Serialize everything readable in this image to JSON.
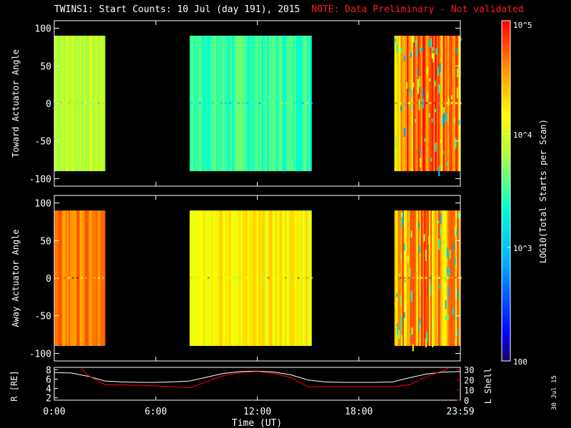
{
  "header": {
    "title": "TWINS1: Start Counts: 10 Jul (day 191), 2015",
    "note": "NOTE: Data Preliminary - Not validated"
  },
  "datestamp": "30 Jul 15",
  "colors": {
    "note": "#ff1a1a",
    "orbit_r": "#ffffff",
    "orbit_l": "#ff0000"
  },
  "chart_data": [
    {
      "type": "heatmap",
      "title": "",
      "ylabel": "Toward Actuator Angle",
      "ylim": [
        -110,
        110
      ],
      "y_ticks": [
        "100",
        "50",
        "0",
        "-50",
        "-100"
      ],
      "angle_range": [
        -90,
        90
      ],
      "data_segments": [
        {
          "start_hour": 0.0,
          "end_hour": 3.0,
          "level": 3.9
        },
        {
          "start_hour": 8.0,
          "end_hour": 15.2,
          "level": 3.5
        },
        {
          "start_hour": 20.1,
          "end_hour": 23.98,
          "level": 4.55
        }
      ]
    },
    {
      "type": "heatmap",
      "title": "",
      "ylabel": "Away Actuator Angle",
      "ylim": [
        -110,
        110
      ],
      "y_ticks": [
        "100",
        "50",
        "0",
        "-50",
        "-100"
      ],
      "angle_range": [
        -90,
        90
      ],
      "data_segments": [
        {
          "start_hour": 0.0,
          "end_hour": 3.0,
          "level": 4.6
        },
        {
          "start_hour": 8.0,
          "end_hour": 15.2,
          "level": 4.2
        },
        {
          "start_hour": 20.1,
          "end_hour": 23.98,
          "level": 4.5
        }
      ]
    },
    {
      "type": "line",
      "title": "",
      "xlabel": "Time (UT)",
      "x_ticks": [
        "0:00",
        "6:00",
        "12:00",
        "18:00",
        "23:59"
      ],
      "xlim": [
        0,
        24
      ],
      "ylabel_left": "R [RE]",
      "ylabel_right": "L Shell",
      "y_left_ticks": [
        "8",
        "6",
        "4",
        "2"
      ],
      "y_left_lim": [
        1.5,
        8.5
      ],
      "y_right_ticks": [
        "30",
        "20",
        "10",
        "0"
      ],
      "y_right_lim": [
        0,
        32
      ],
      "series": [
        {
          "name": "R [RE]",
          "x": [
            0,
            1,
            2,
            3,
            4,
            5,
            6,
            7,
            8,
            9,
            10,
            11,
            12,
            13,
            14,
            15,
            16,
            17,
            18,
            19,
            20,
            21,
            22,
            23,
            24
          ],
          "values": [
            7.4,
            7.3,
            6.6,
            5.6,
            5.4,
            5.3,
            5.3,
            5.4,
            5.6,
            6.4,
            7.2,
            7.6,
            7.7,
            7.5,
            6.9,
            5.8,
            5.4,
            5.3,
            5.3,
            5.3,
            5.4,
            6.3,
            7.1,
            7.5,
            7.6
          ]
        },
        {
          "name": "L Shell",
          "x": [
            1.6,
            2,
            3,
            4,
            5,
            6,
            7,
            8,
            9,
            10,
            11,
            12,
            13,
            14,
            15,
            16,
            17,
            18,
            19,
            20,
            21,
            22,
            23,
            23.3
          ],
          "values": [
            31,
            24,
            15,
            15,
            14.5,
            14,
            13,
            12,
            18,
            24,
            27,
            28,
            26,
            22,
            13,
            13,
            13,
            13,
            13,
            13,
            15,
            23,
            29,
            31
          ]
        }
      ]
    },
    {
      "type": "heatmap",
      "title": "",
      "colorbar_label": "LOG10(Total Starts per Scan)",
      "colorbar_ticks": [
        "10^5",
        "10^4",
        "10^3",
        "100"
      ],
      "colorbar_log_range": [
        2,
        5
      ]
    }
  ]
}
